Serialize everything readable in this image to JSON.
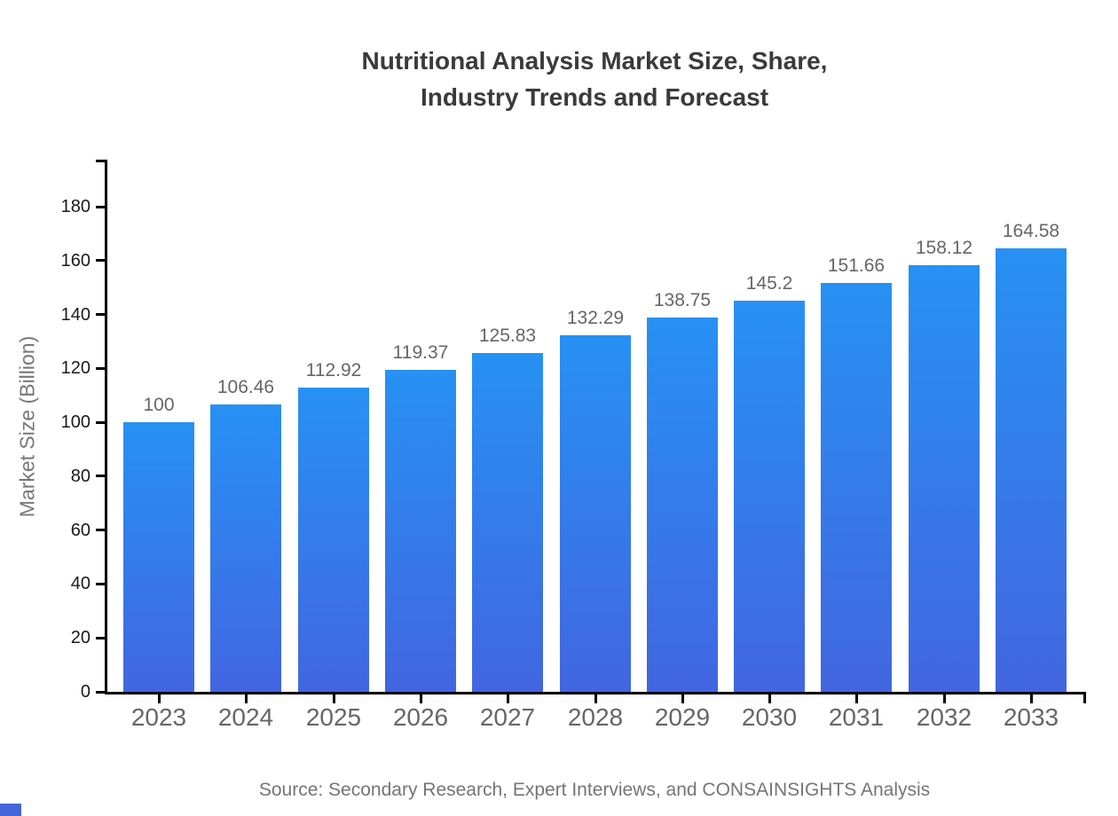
{
  "title": {
    "line1": "Nutritional Analysis Market Size, Share,",
    "line2": "Industry Trends and Forecast",
    "color": "#3a3a3a"
  },
  "source": {
    "text": "Source: Secondary Research, Expert Interviews, and CONSAINSIGHTS Analysis",
    "color": "#757575"
  },
  "watermark": {
    "color": "#4565db"
  },
  "chart_data": {
    "type": "bar",
    "title": "Nutritional Analysis Market Size, Share, Industry Trends and Forecast",
    "categories": [
      "2023",
      "2024",
      "2025",
      "2026",
      "2027",
      "2028",
      "2029",
      "2030",
      "2031",
      "2032",
      "2033"
    ],
    "values": [
      100,
      106.46,
      112.92,
      119.37,
      125.83,
      132.29,
      138.75,
      145.2,
      151.66,
      158.12,
      164.58
    ],
    "value_labels": [
      "100",
      "106.46",
      "112.92",
      "119.37",
      "125.83",
      "132.29",
      "138.75",
      "145.2",
      "151.66",
      "158.12",
      "164.58"
    ],
    "xlabel": "",
    "ylabel": "Market Size (Billion)",
    "ylim": [
      0,
      197
    ],
    "yticks": [
      0,
      20,
      40,
      60,
      80,
      100,
      120,
      140,
      160,
      180
    ],
    "grid": false,
    "legend": "none",
    "bar_color_top": "#2791f3",
    "bar_color_bottom": "#4266e0",
    "axis_color": "#000000",
    "ytick_label_color": "#1a1a1a",
    "xtick_label_color": "#666666",
    "value_label_color": "#666666"
  }
}
